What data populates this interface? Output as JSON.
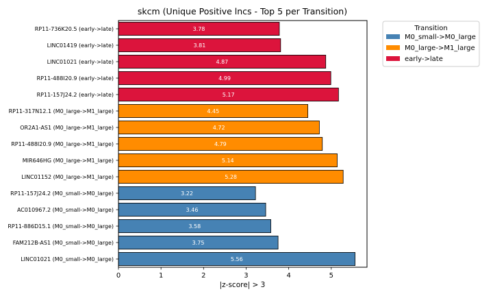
{
  "chart_data": {
    "type": "bar",
    "orientation": "horizontal",
    "title": "skcm (Unique Positive lncs - Top 5 per Transition)",
    "xlabel": "|z-score| > 3",
    "ylabel": "",
    "xlim": [
      0,
      5.84
    ],
    "xticks": [
      "0",
      "1",
      "2",
      "3",
      "4",
      "5"
    ],
    "grid": false,
    "legend_position": "outside-top-right",
    "legend_title": "Transition",
    "series": [
      {
        "name": "M0_small->M0_large",
        "color": "#4682b4"
      },
      {
        "name": "M0_large->M1_large",
        "color": "#ff8c00"
      },
      {
        "name": "early->late",
        "color": "#dc143c"
      }
    ],
    "bars": [
      {
        "label": "RP11-736K20.5 (early->late)",
        "value": 3.78,
        "value_label": "3.78",
        "series": "early->late"
      },
      {
        "label": "LINC01419 (early->late)",
        "value": 3.81,
        "value_label": "3.81",
        "series": "early->late"
      },
      {
        "label": "LINC01021 (early->late)",
        "value": 4.87,
        "value_label": "4.87",
        "series": "early->late"
      },
      {
        "label": "RP11-488I20.9 (early->late)",
        "value": 4.99,
        "value_label": "4.99",
        "series": "early->late"
      },
      {
        "label": "RP11-157J24.2 (early->late)",
        "value": 5.17,
        "value_label": "5.17",
        "series": "early->late"
      },
      {
        "label": "RP11-317N12.1 (M0_large->M1_large)",
        "value": 4.45,
        "value_label": "4.45",
        "series": "M0_large->M1_large"
      },
      {
        "label": "OR2A1-AS1 (M0_large->M1_large)",
        "value": 4.72,
        "value_label": "4.72",
        "series": "M0_large->M1_large"
      },
      {
        "label": "RP11-488I20.9 (M0_large->M1_large)",
        "value": 4.79,
        "value_label": "4.79",
        "series": "M0_large->M1_large"
      },
      {
        "label": "MIR646HG (M0_large->M1_large)",
        "value": 5.14,
        "value_label": "5.14",
        "series": "M0_large->M1_large"
      },
      {
        "label": "LINC01152 (M0_large->M1_large)",
        "value": 5.28,
        "value_label": "5.28",
        "series": "M0_large->M1_large"
      },
      {
        "label": "RP11-157J24.2 (M0_small->M0_large)",
        "value": 3.22,
        "value_label": "3.22",
        "series": "M0_small->M0_large"
      },
      {
        "label": "AC010967.2 (M0_small->M0_large)",
        "value": 3.46,
        "value_label": "3.46",
        "series": "M0_small->M0_large"
      },
      {
        "label": "RP11-886D15.1 (M0_small->M0_large)",
        "value": 3.58,
        "value_label": "3.58",
        "series": "M0_small->M0_large"
      },
      {
        "label": "FAM212B-AS1 (M0_small->M0_large)",
        "value": 3.75,
        "value_label": "3.75",
        "series": "M0_small->M0_large"
      },
      {
        "label": "LINC01021 (M0_small->M0_large)",
        "value": 5.56,
        "value_label": "5.56",
        "series": "M0_small->M0_large"
      }
    ]
  }
}
